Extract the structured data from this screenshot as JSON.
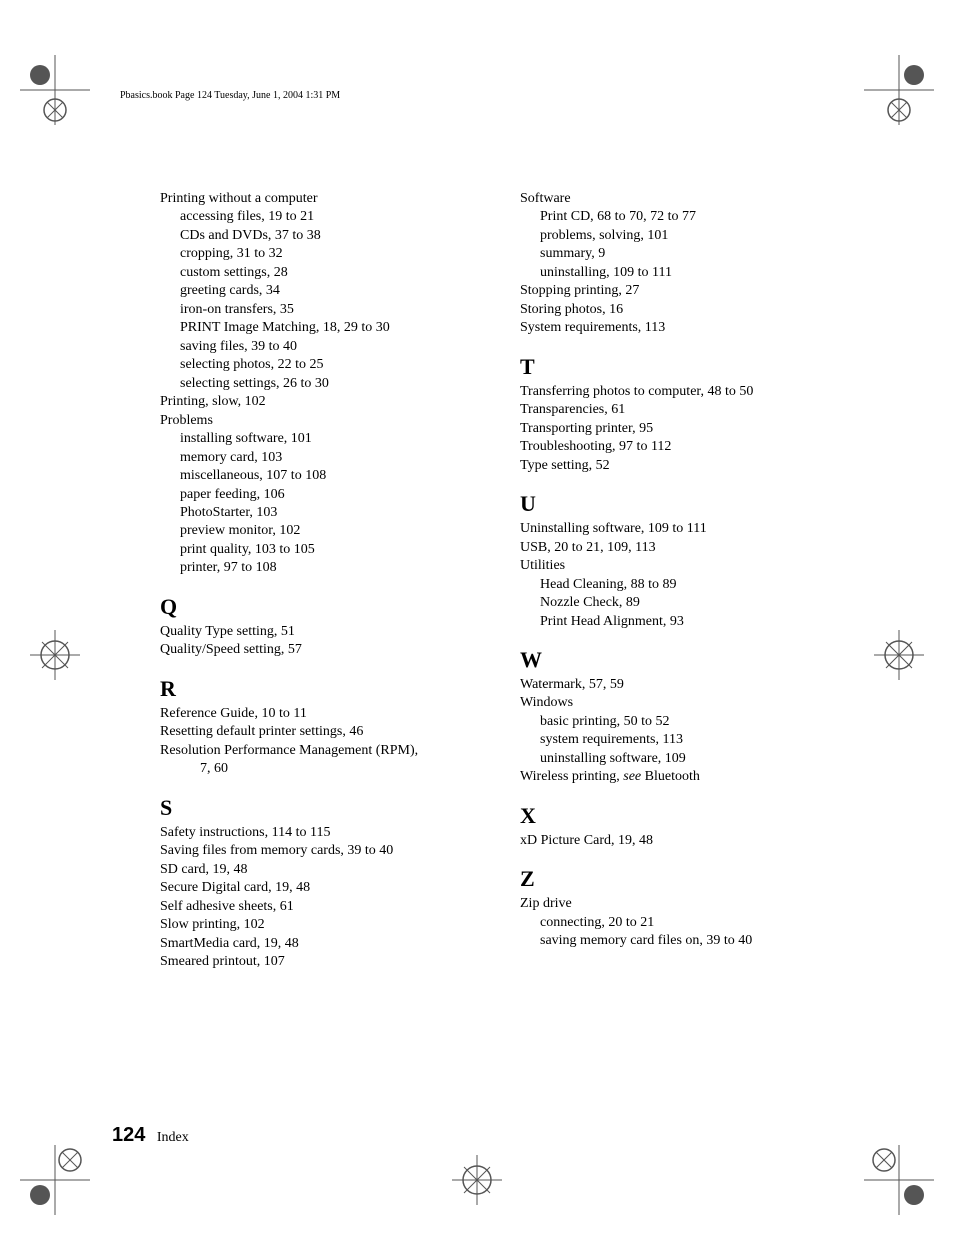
{
  "header": "Pbasics.book  Page 124  Tuesday, June 1, 2004  1:31 PM",
  "page_number": "124",
  "footer_label": "Index",
  "mark_color": "#555555",
  "left_column": {
    "top_entries": [
      "Printing without a computer",
      {
        "sub": "accessing files, 19 to 21"
      },
      {
        "sub": "CDs and DVDs, 37 to 38"
      },
      {
        "sub": "cropping, 31 to 32"
      },
      {
        "sub": "custom settings, 28"
      },
      {
        "sub": "greeting cards, 34"
      },
      {
        "sub": "iron-on transfers, 35"
      },
      {
        "sub": "PRINT Image Matching, 18, 29 to 30"
      },
      {
        "sub": "saving files, 39 to 40"
      },
      {
        "sub": "selecting photos, 22 to 25"
      },
      {
        "sub": "selecting settings, 26 to 30"
      },
      "Printing, slow, 102",
      "Problems",
      {
        "sub": "installing software, 101"
      },
      {
        "sub": "memory card, 103"
      },
      {
        "sub": "miscellaneous, 107 to 108"
      },
      {
        "sub": "paper feeding, 106"
      },
      {
        "sub": "PhotoStarter, 103"
      },
      {
        "sub": "preview monitor, 102"
      },
      {
        "sub": "print quality, 103 to 105"
      },
      {
        "sub": "printer, 97 to 108"
      }
    ],
    "sections": [
      {
        "letter": "Q",
        "entries": [
          "Quality Type setting, 51",
          "Quality/Speed setting, 57"
        ]
      },
      {
        "letter": "R",
        "entries": [
          "Reference Guide, 10 to 11",
          "Resetting default printer settings, 46",
          "Resolution Performance Management (RPM),",
          {
            "sub2": "7, 60"
          }
        ]
      },
      {
        "letter": "S",
        "entries": [
          "Safety instructions, 114 to 115",
          "Saving files from memory cards, 39 to 40",
          "SD card, 19, 48",
          "Secure Digital card, 19, 48",
          "Self adhesive sheets, 61",
          "Slow printing, 102",
          "SmartMedia card, 19, 48",
          "Smeared printout, 107"
        ]
      }
    ]
  },
  "right_column": {
    "top_entries": [
      "Software",
      {
        "sub": "Print CD, 68 to 70, 72 to 77"
      },
      {
        "sub": "problems, solving, 101"
      },
      {
        "sub": "summary, 9"
      },
      {
        "sub": "uninstalling, 109 to 111"
      },
      "Stopping printing, 27",
      "Storing photos, 16",
      "System requirements, 113"
    ],
    "sections": [
      {
        "letter": "T",
        "entries": [
          "Transferring photos to computer, 48 to 50",
          "Transparencies, 61",
          "Transporting printer, 95",
          "Troubleshooting, 97 to 112",
          "Type setting, 52"
        ]
      },
      {
        "letter": "U",
        "entries": [
          "Uninstalling software, 109 to 111",
          "USB, 20 to 21, 109, 113",
          "Utilities",
          {
            "sub": "Head Cleaning, 88 to 89"
          },
          {
            "sub": "Nozzle Check, 89"
          },
          {
            "sub": "Print Head Alignment, 93"
          }
        ]
      },
      {
        "letter": "W",
        "entries": [
          "Watermark, 57, 59",
          "Windows",
          {
            "sub": "basic printing, 50 to 52"
          },
          {
            "sub": "system requirements, 113"
          },
          {
            "sub": "uninstalling software, 109"
          },
          {
            "html": "Wireless printing, <span class=\"italic\">see</span> Bluetooth"
          }
        ]
      },
      {
        "letter": "X",
        "entries": [
          "xD Picture Card, 19, 48"
        ]
      },
      {
        "letter": "Z",
        "entries": [
          "Zip drive",
          {
            "sub": "connecting, 20 to 21"
          },
          {
            "sub": "saving memory card files on, 39 to 40"
          }
        ]
      }
    ]
  }
}
